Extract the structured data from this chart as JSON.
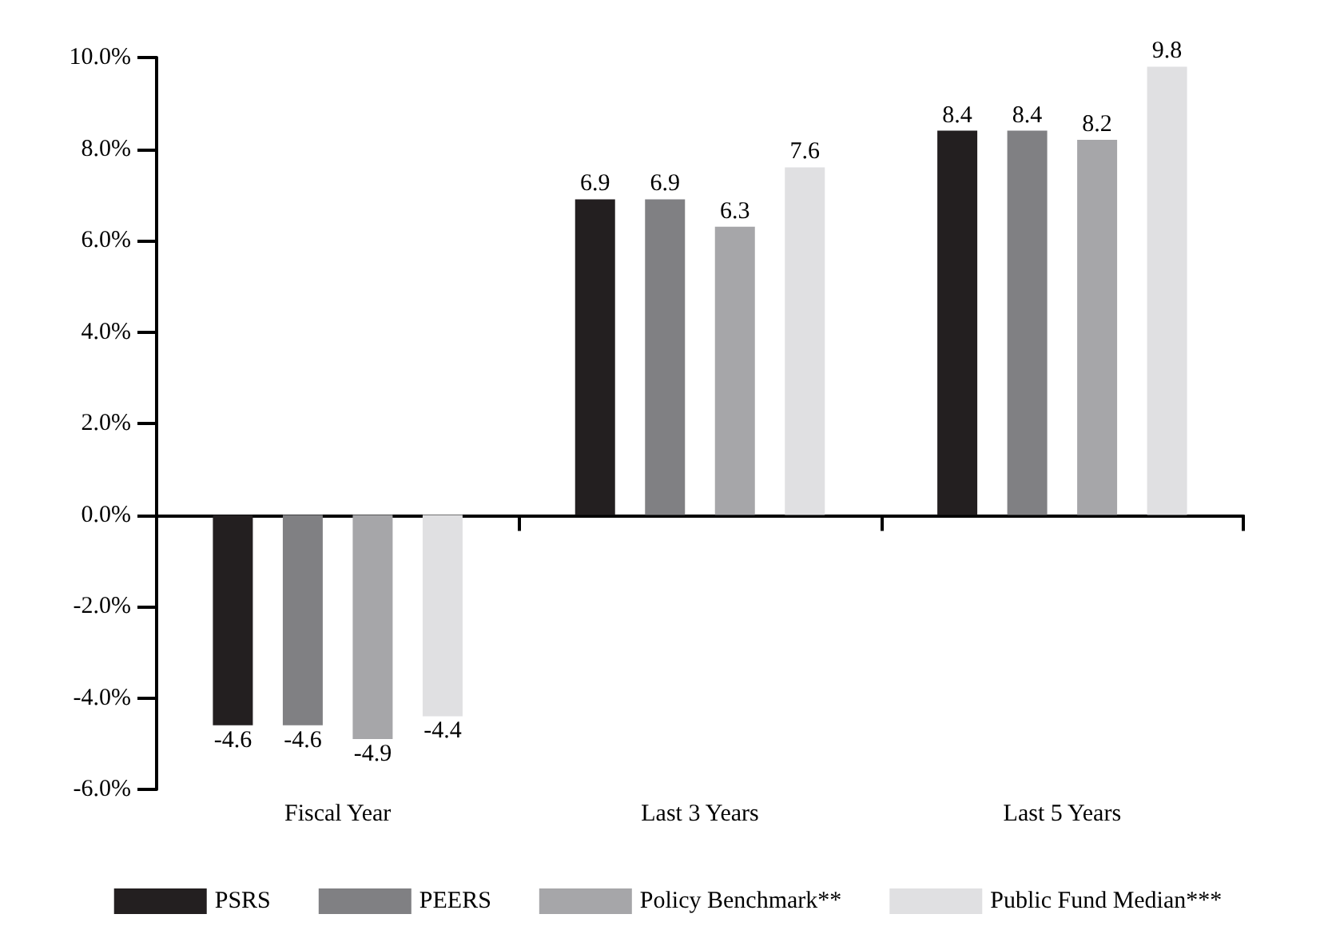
{
  "chart_data": {
    "type": "bar",
    "categories": [
      "Fiscal Year",
      "Last 3 Years",
      "Last 5 Years"
    ],
    "series": [
      {
        "name": "PSRS",
        "color": "#231f20",
        "values": [
          -4.6,
          6.9,
          8.4
        ]
      },
      {
        "name": "PEERS",
        "color": "#808083",
        "values": [
          -4.6,
          6.9,
          8.4
        ]
      },
      {
        "name": "Policy Benchmark**",
        "color": "#a6a6a9",
        "values": [
          -4.9,
          6.3,
          8.2
        ]
      },
      {
        "name": "Public Fund Median***",
        "color": "#e0e0e2",
        "values": [
          -4.4,
          7.6,
          9.8
        ]
      }
    ],
    "ylim": [
      -6,
      10
    ],
    "yticks": [
      {
        "value": -6,
        "label": "-6.0%"
      },
      {
        "value": -4,
        "label": "-4.0%"
      },
      {
        "value": -2,
        "label": "-2.0%"
      },
      {
        "value": 0,
        "label": "0.0%"
      },
      {
        "value": 2,
        "label": "2.0%"
      },
      {
        "value": 4,
        "label": "4.0%"
      },
      {
        "value": 6,
        "label": "6.0%"
      },
      {
        "value": 8,
        "label": "8.0%"
      },
      {
        "value": 10,
        "label": "10.0%"
      }
    ],
    "data_labels": true,
    "legend": "bottom"
  }
}
